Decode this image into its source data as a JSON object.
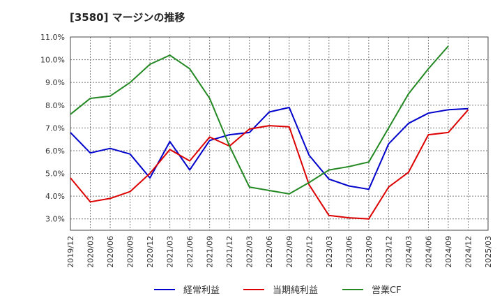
{
  "chart_data": {
    "type": "line",
    "title": "[3580]  マージンの推移",
    "x": [
      "2019/12",
      "2020/03",
      "2020/06",
      "2020/09",
      "2020/12",
      "2021/03",
      "2021/06",
      "2021/09",
      "2021/12",
      "2022/03",
      "2022/06",
      "2022/09",
      "2022/12",
      "2023/03",
      "2023/06",
      "2023/09",
      "2023/12",
      "2024/03",
      "2024/06",
      "2024/09",
      "2024/12",
      "2025/03"
    ],
    "y_ticks": [
      "3.0%",
      "4.0%",
      "5.0%",
      "6.0%",
      "7.0%",
      "8.0%",
      "9.0%",
      "10.0%",
      "11.0%"
    ],
    "ylim": [
      2.5,
      11.0
    ],
    "grid": true,
    "legend_position": "bottom",
    "series": [
      {
        "name": "経常利益",
        "color": "#0000cc",
        "values": [
          6.8,
          5.9,
          6.1,
          5.85,
          4.8,
          6.4,
          5.15,
          6.45,
          6.7,
          6.8,
          7.7,
          7.9,
          5.8,
          4.75,
          4.45,
          4.3,
          6.3,
          7.2,
          7.65,
          7.8,
          7.85,
          null
        ]
      },
      {
        "name": "当期純利益",
        "color": "#dd0000",
        "values": [
          4.8,
          3.75,
          3.9,
          4.2,
          5.0,
          6.05,
          5.55,
          6.6,
          6.2,
          6.95,
          7.1,
          7.05,
          4.5,
          3.15,
          3.05,
          3.0,
          4.4,
          5.05,
          6.7,
          6.8,
          7.8,
          null
        ]
      },
      {
        "name": "営業CF",
        "color": "#228822",
        "values": [
          7.6,
          8.3,
          8.4,
          9.0,
          9.8,
          10.2,
          9.6,
          8.3,
          6.2,
          4.4,
          4.25,
          4.1,
          4.6,
          5.15,
          5.3,
          5.5,
          7.0,
          8.5,
          9.6,
          10.6,
          null,
          null
        ]
      }
    ]
  }
}
